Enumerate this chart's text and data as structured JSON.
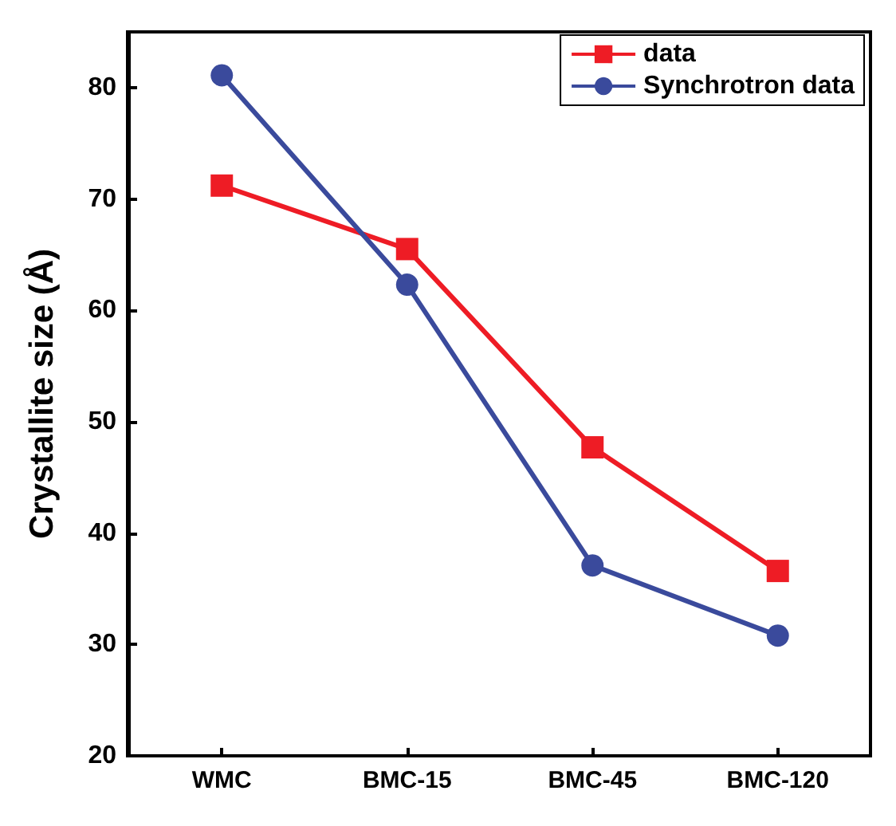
{
  "chart_data": {
    "type": "line",
    "ylabel": "Crystallite size (Å)",
    "categories": [
      "WMC",
      "BMC-15",
      "BMC-45",
      "BMC-120"
    ],
    "series": [
      {
        "name": "data",
        "color": "#ee1c25",
        "marker": "square",
        "values": [
          71.2,
          65.5,
          47.7,
          36.6
        ]
      },
      {
        "name": "Synchrotron data",
        "color": "#3a4a9c",
        "marker": "circle",
        "values": [
          81.1,
          62.3,
          37.1,
          30.8
        ]
      }
    ],
    "ylim": [
      20,
      85
    ],
    "yticks": [
      20,
      30,
      40,
      50,
      60,
      70,
      80
    ],
    "grid": false,
    "legend": "top right"
  }
}
